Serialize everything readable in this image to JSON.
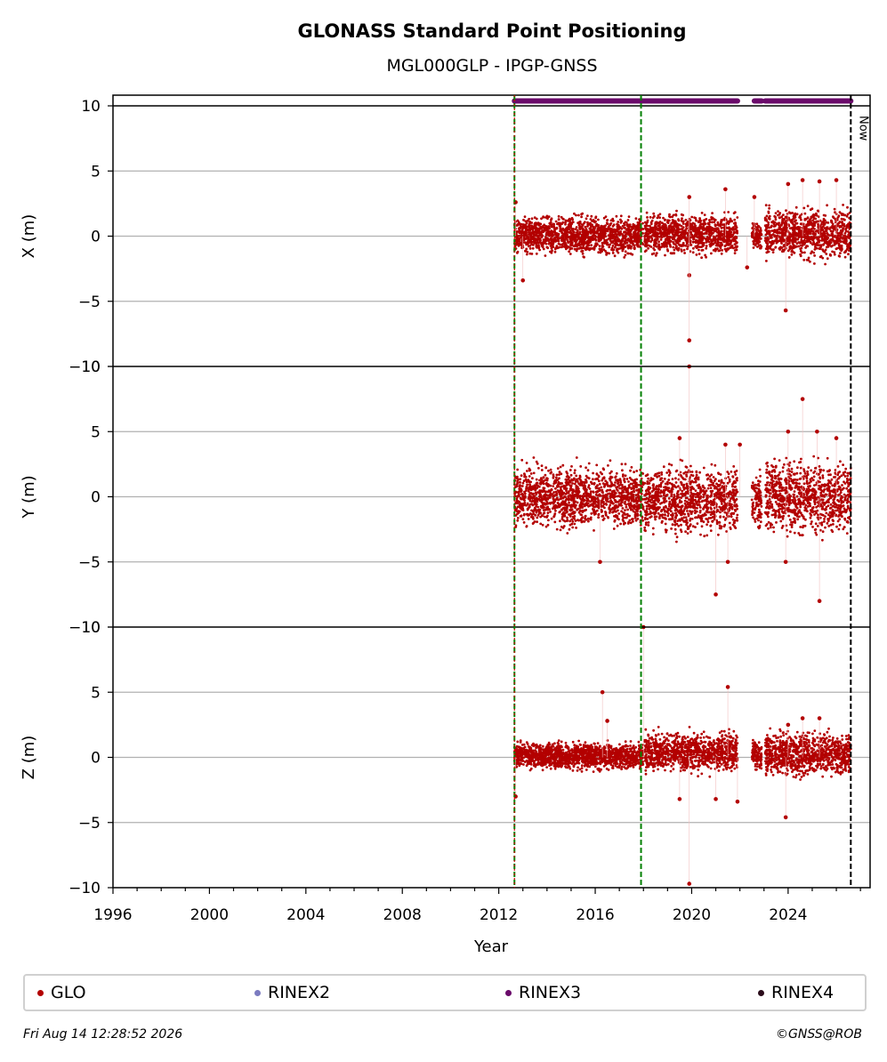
{
  "title": "GLONASS Standard Point Positioning",
  "subtitle": "MGL000GLP - IPGP-GNSS",
  "footer": {
    "timestamp": "Fri Aug 14 12:28:52 2026",
    "credit": "©GNSS@ROB"
  },
  "colors": {
    "glo": "#b30000",
    "rinex2": "#7b7bc0",
    "rinex3": "#6a0a6a",
    "rinex4": "#2a0a1a",
    "grid": "#b0b0b0",
    "event": "#008000",
    "now": "#000000"
  },
  "legend": [
    {
      "label": "GLO",
      "color": "#b30000"
    },
    {
      "label": "RINEX2",
      "color": "#7b7bc0"
    },
    {
      "label": "RINEX3",
      "color": "#6a0a6a"
    },
    {
      "label": "RINEX4",
      "color": "#2a0a1a"
    }
  ],
  "chart_data": {
    "type": "scatter",
    "xlabel": "Year",
    "xlim": [
      1996,
      2027.4
    ],
    "xticks": [
      1996,
      2000,
      2004,
      2008,
      2012,
      2016,
      2020,
      2024
    ],
    "now_label": "Now",
    "now_x": 2026.6,
    "event_lines": [
      2012.65,
      2017.9
    ],
    "data_start": 2012.65,
    "rinex3_coverage": [
      [
        2012.65,
        2018.0
      ],
      [
        2018.05,
        2021.9
      ],
      [
        2022.6,
        2022.9
      ],
      [
        2023.05,
        2026.6
      ]
    ],
    "panels": [
      {
        "ylabel": "X (m)",
        "ylim": [
          -10,
          10
        ],
        "yticks": [
          10,
          5,
          0,
          -5,
          -10
        ],
        "series": [
          {
            "name": "GLO",
            "segments": [
              {
                "x": [
                  2012.65,
                  2018.0
                ],
                "band": [
                  -1.5,
                  1.6
                ]
              },
              {
                "x": [
                  2018.05,
                  2021.9
                ],
                "band": [
                  -1.5,
                  1.8
                ]
              },
              {
                "x": [
                  2022.5,
                  2022.9
                ],
                "band": [
                  -1.2,
                  1.2
                ]
              },
              {
                "x": [
                  2023.05,
                  2026.6
                ],
                "band": [
                  -1.8,
                  2.2
                ]
              }
            ]
          }
        ],
        "outliers": [
          [
            2012.7,
            2.6
          ],
          [
            2013.0,
            -3.4
          ],
          [
            2019.9,
            -3.0
          ],
          [
            2019.9,
            -8.0
          ],
          [
            2019.9,
            3.0
          ],
          [
            2021.4,
            3.6
          ],
          [
            2022.6,
            3.0
          ],
          [
            2023.9,
            -5.7
          ],
          [
            2024.0,
            4.0
          ],
          [
            2024.6,
            4.3
          ],
          [
            2025.3,
            4.2
          ],
          [
            2026.0,
            4.3
          ],
          [
            2022.3,
            -2.4
          ]
        ]
      },
      {
        "ylabel": "Y (m)",
        "ylim": [
          -10,
          10
        ],
        "yticks": [
          10,
          5,
          0,
          -5,
          -10
        ],
        "series": [
          {
            "name": "GLO",
            "segments": [
              {
                "x": [
                  2012.65,
                  2018.0
                ],
                "band": [
                  -2.5,
                  2.5
                ]
              },
              {
                "x": [
                  2018.05,
                  2021.9
                ],
                "band": [
                  -3.0,
                  2.5
                ]
              },
              {
                "x": [
                  2022.5,
                  2022.9
                ],
                "band": [
                  -2.5,
                  2.0
                ]
              },
              {
                "x": [
                  2023.05,
                  2026.6
                ],
                "band": [
                  -3.0,
                  3.0
                ]
              }
            ]
          }
        ],
        "outliers": [
          [
            2019.9,
            10.5
          ],
          [
            2016.2,
            -5.0
          ],
          [
            2021.0,
            -7.5
          ],
          [
            2021.5,
            -5.0
          ],
          [
            2023.9,
            -5.0
          ],
          [
            2024.0,
            5.0
          ],
          [
            2024.6,
            7.5
          ],
          [
            2025.3,
            -8.0
          ],
          [
            2019.5,
            4.5
          ],
          [
            2021.4,
            4.0
          ],
          [
            2022.0,
            4.0
          ],
          [
            2025.2,
            5.0
          ],
          [
            2026.0,
            4.5
          ]
        ]
      },
      {
        "ylabel": "Z (m)",
        "ylim": [
          -10,
          10
        ],
        "yticks": [
          10,
          5,
          0,
          -5,
          -10
        ],
        "series": [
          {
            "name": "GLO",
            "segments": [
              {
                "x": [
                  2012.65,
                  2018.0
                ],
                "band": [
                  -1.0,
                  1.2
                ]
              },
              {
                "x": [
                  2018.05,
                  2021.9
                ],
                "band": [
                  -1.2,
                  2.0
                ]
              },
              {
                "x": [
                  2022.5,
                  2022.9
                ],
                "band": [
                  -1.0,
                  1.5
                ]
              },
              {
                "x": [
                  2023.05,
                  2026.6
                ],
                "band": [
                  -1.5,
                  2.0
                ]
              }
            ]
          }
        ],
        "outliers": [
          [
            2012.7,
            -3.0
          ],
          [
            2016.3,
            5.0
          ],
          [
            2016.5,
            2.8
          ],
          [
            2018.0,
            10.0
          ],
          [
            2019.5,
            -3.2
          ],
          [
            2019.9,
            -9.7
          ],
          [
            2021.0,
            -3.2
          ],
          [
            2021.5,
            5.4
          ],
          [
            2021.9,
            -3.4
          ],
          [
            2023.9,
            -4.6
          ],
          [
            2024.0,
            2.5
          ],
          [
            2024.6,
            3.0
          ],
          [
            2025.3,
            3.0
          ]
        ]
      }
    ]
  }
}
